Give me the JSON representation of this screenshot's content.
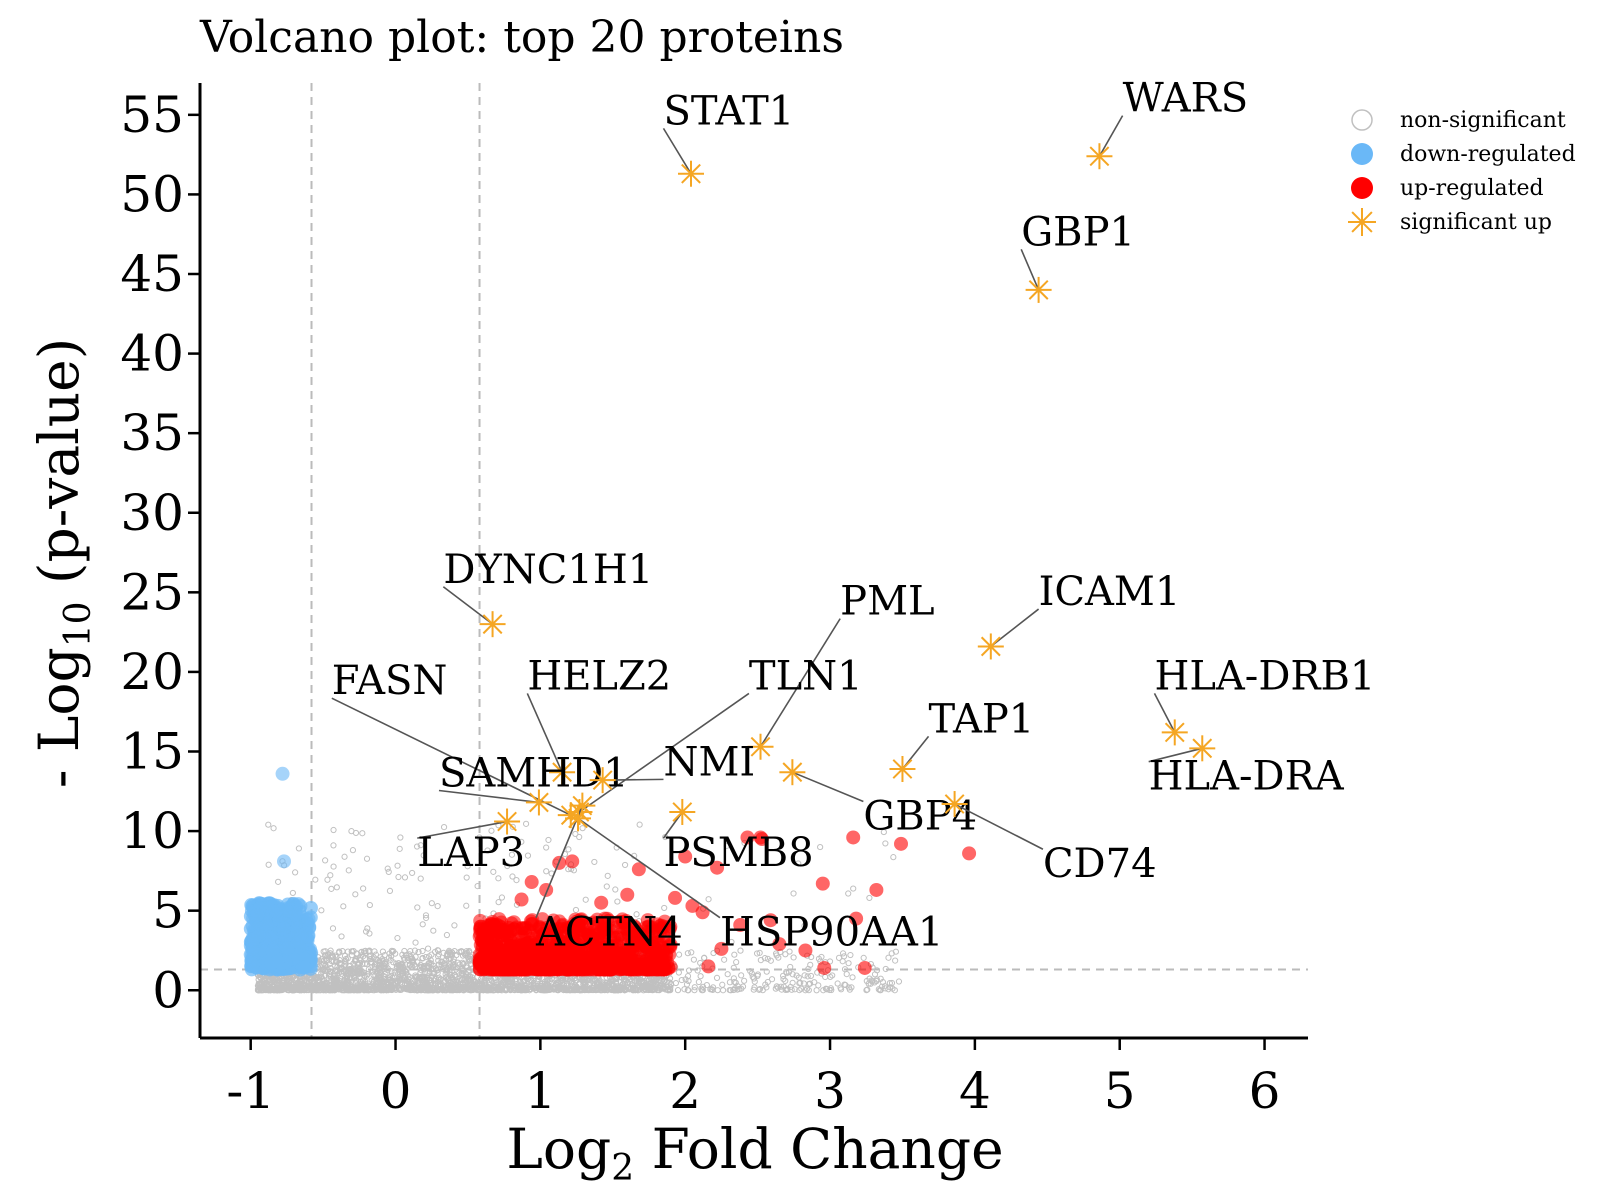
{
  "chart_data": {
    "type": "scatter",
    "title": "Volcano plot: top 20 proteins",
    "xlabel": {
      "prefix": "Log",
      "sub": "2",
      "suffix": " Fold Change"
    },
    "ylabel": {
      "prefix": "- Log",
      "sub": "10",
      "suffix": " (p-value)"
    },
    "xlim": [
      -1.35,
      6.3
    ],
    "ylim": [
      -3.0,
      57.0
    ],
    "x_ticks": [
      -1,
      0,
      1,
      2,
      3,
      4,
      5,
      6
    ],
    "x_tick_labels": [
      "-1",
      "0",
      "1",
      "2",
      "3",
      "4",
      "5",
      "6"
    ],
    "y_ticks": [
      0,
      5,
      10,
      15,
      20,
      25,
      30,
      35,
      40,
      45,
      50,
      55
    ],
    "y_tick_labels": [
      "0",
      "5",
      "10",
      "15",
      "20",
      "25",
      "30",
      "35",
      "40",
      "45",
      "50",
      "55"
    ],
    "thresholds": {
      "fold_change": [
        -0.58,
        0.58
      ],
      "p_value_line": 1.3
    },
    "grid": false,
    "legend_position": "top-right",
    "colors": {
      "non_significant": "#c0c0c0",
      "down_regulated": "#6ab8f7",
      "up_regulated": "#ff0000",
      "significant_up": "#f5a623",
      "threshold_line": "#bbbbbb",
      "connector": "#555555"
    },
    "series": [
      {
        "name": "non-significant",
        "marker": "open-circle",
        "approx_count": 3000,
        "x_range": [
          -0.95,
          1.9
        ],
        "y_range": [
          0,
          2.5
        ]
      },
      {
        "name": "down-regulated",
        "marker": "filled-circle",
        "approx_count": 400,
        "x_range": [
          -1.0,
          -0.58
        ],
        "y_range": [
          1.3,
          5.5
        ]
      },
      {
        "name": "up-regulated",
        "marker": "filled-circle",
        "approx_count": 900,
        "x_range": [
          0.58,
          1.9
        ],
        "y_range": [
          1.3,
          4.5
        ]
      },
      {
        "name": "significant up",
        "marker": "asterisk"
      }
    ],
    "highlighted_points": [
      {
        "x": 3.16,
        "y": 9.6
      },
      {
        "x": 2.43,
        "y": 9.6
      },
      {
        "x": 2.52,
        "y": 9.6
      },
      {
        "x": 2.53,
        "y": 9.5
      },
      {
        "x": 2.22,
        "y": 7.7
      },
      {
        "x": 2.0,
        "y": 8.4
      },
      {
        "x": 1.13,
        "y": 8.0
      },
      {
        "x": 1.22,
        "y": 8.1
      },
      {
        "x": 1.68,
        "y": 7.6
      },
      {
        "x": 3.49,
        "y": 9.2
      },
      {
        "x": 3.96,
        "y": 8.6
      },
      {
        "x": 2.95,
        "y": 6.7
      },
      {
        "x": 3.32,
        "y": 6.3
      },
      {
        "x": 1.93,
        "y": 5.8
      },
      {
        "x": 2.05,
        "y": 5.3
      },
      {
        "x": 2.12,
        "y": 4.9
      },
      {
        "x": 3.18,
        "y": 4.5
      },
      {
        "x": 2.59,
        "y": 4.4
      },
      {
        "x": 2.38,
        "y": 4.1
      },
      {
        "x": 2.65,
        "y": 2.9
      },
      {
        "x": 2.25,
        "y": 2.6
      },
      {
        "x": 2.96,
        "y": 1.4
      },
      {
        "x": 3.24,
        "y": 1.4
      },
      {
        "x": 2.16,
        "y": 1.5
      },
      {
        "x": 2.83,
        "y": 2.5
      },
      {
        "x": 1.42,
        "y": 5.5
      },
      {
        "x": 1.6,
        "y": 6.0
      },
      {
        "x": 0.94,
        "y": 6.8
      },
      {
        "x": 1.04,
        "y": 6.3
      },
      {
        "x": 0.87,
        "y": 5.7
      },
      {
        "x": -0.78,
        "y": 13.6
      },
      {
        "x": -0.77,
        "y": 8.1
      }
    ],
    "genes": [
      {
        "name": "WARS",
        "x": 4.86,
        "y": 52.4,
        "lx": 5.02,
        "ly": 55.2
      },
      {
        "name": "STAT1",
        "x": 2.04,
        "y": 51.3,
        "lx": 1.85,
        "ly": 54.4
      },
      {
        "name": "GBP1",
        "x": 4.44,
        "y": 44.0,
        "lx": 4.32,
        "ly": 46.8
      },
      {
        "name": "DYNC1H1",
        "x": 0.67,
        "y": 23.0,
        "lx": 0.33,
        "ly": 25.6
      },
      {
        "name": "PML",
        "x": 2.52,
        "y": 15.3,
        "lx": 3.07,
        "ly": 23.6
      },
      {
        "name": "ICAM1",
        "x": 4.11,
        "y": 21.6,
        "lx": 4.44,
        "ly": 24.2
      },
      {
        "name": "FASN",
        "x": 1.21,
        "y": 11.0,
        "lx": -0.44,
        "ly": 18.6
      },
      {
        "name": "HELZ2",
        "x": 1.15,
        "y": 13.7,
        "lx": 0.91,
        "ly": 18.9
      },
      {
        "name": "TLN1",
        "x": 1.27,
        "y": 11.2,
        "lx": 2.44,
        "ly": 18.9
      },
      {
        "name": "TAP1",
        "x": 3.5,
        "y": 13.9,
        "lx": 3.68,
        "ly": 16.2
      },
      {
        "name": "HLA-DRB1",
        "x": 5.38,
        "y": 16.2,
        "lx": 5.24,
        "ly": 18.9
      },
      {
        "name": "HLA-DRA",
        "x": 5.57,
        "y": 15.2,
        "lx": 5.2,
        "ly": 12.6
      },
      {
        "name": "SAMHD1",
        "x": 0.99,
        "y": 11.8,
        "lx": 0.3,
        "ly": 12.8
      },
      {
        "name": "NMI",
        "x": 1.43,
        "y": 13.2,
        "lx": 1.85,
        "ly": 13.5
      },
      {
        "name": "GBP4",
        "x": 2.74,
        "y": 13.7,
        "lx": 3.23,
        "ly": 10.1
      },
      {
        "name": "CD74",
        "x": 3.86,
        "y": 11.7,
        "lx": 4.47,
        "ly": 7.1
      },
      {
        "name": "LAP3",
        "x": 0.77,
        "y": 10.6,
        "lx": 0.15,
        "ly": 7.8
      },
      {
        "name": "PSMB8",
        "x": 1.98,
        "y": 11.2,
        "lx": 1.85,
        "ly": 7.8
      },
      {
        "name": "ACTN4",
        "x": 1.29,
        "y": 11.6,
        "lx": 0.97,
        "ly": 2.8
      },
      {
        "name": "HSP90AA1",
        "x": 1.26,
        "y": 10.8,
        "lx": 2.24,
        "ly": 2.8
      }
    ]
  }
}
